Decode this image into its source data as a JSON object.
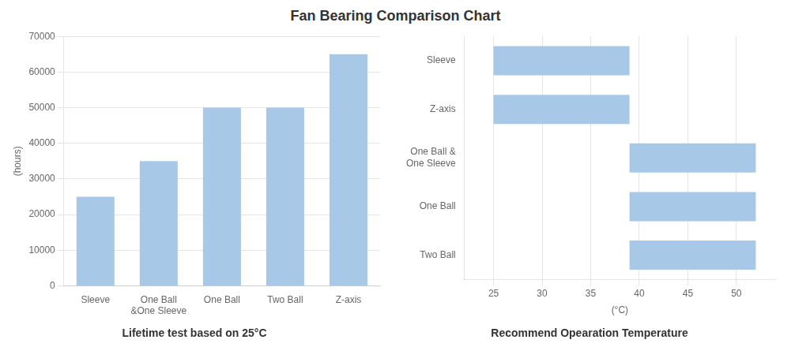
{
  "chart_data": [
    {
      "type": "bar",
      "title": "Fan Bearing Comparison Chart",
      "subtitle": "Lifetime test based on 25°C",
      "categories": [
        "Sleeve",
        "One Ball\n&One Sleeve",
        "One Ball",
        "Two Ball",
        "Z-axis"
      ],
      "values": [
        25000,
        35000,
        50000,
        50000,
        65000
      ],
      "color": "#a8c8e8",
      "ylabel": "(hours)",
      "ylim": [
        0,
        70000
      ],
      "yticks": [
        0,
        10000,
        20000,
        30000,
        40000,
        50000,
        60000,
        70000
      ],
      "grid": true
    },
    {
      "type": "bar",
      "orientation": "horizontal",
      "subtitle": "Recommend Opearation Temperature",
      "categories": [
        "Sleeve",
        "Z-axis",
        "One Ball &\nOne Sleeve",
        "One Ball",
        "Two Ball"
      ],
      "starts": [
        25,
        25,
        39,
        39,
        39
      ],
      "ends": [
        39,
        39,
        52,
        52,
        52
      ],
      "color": "#a8c8e8",
      "xlabel": "(°C)",
      "xlim": [
        22,
        54
      ],
      "xticks": [
        25,
        30,
        35,
        40,
        45,
        50
      ],
      "grid": true
    }
  ]
}
